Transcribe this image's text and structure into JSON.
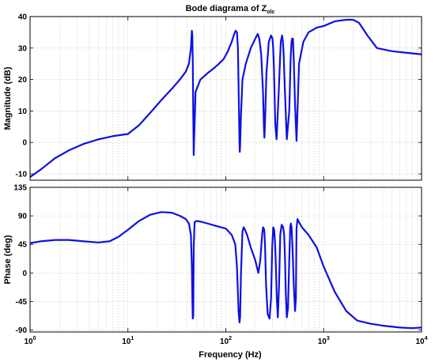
{
  "chart_data": [
    {
      "type": "line",
      "title": "Bode diagrama of Z",
      "title_subscript": "olc",
      "xlabel": "",
      "ylabel": "Magnitude (dB)",
      "xscale": "log",
      "xlim": [
        1,
        10000
      ],
      "ylim": [
        -12,
        40
      ],
      "yticks": [
        -10,
        0,
        10,
        20,
        30,
        40
      ],
      "grid": true,
      "line_color": "#1010e0",
      "series": [
        {
          "x": [
            1,
            1.3,
            1.8,
            2.5,
            3.5,
            5,
            7,
            10,
            13,
            17,
            22,
            28,
            34,
            39,
            42,
            44,
            45,
            45.5,
            46,
            46.5,
            47,
            49,
            55,
            65,
            75,
            85,
            95,
            105,
            115,
            122,
            126,
            130,
            133,
            135,
            137,
            138,
            139,
            140,
            143,
            148,
            160,
            180,
            200,
            212,
            220,
            230,
            240,
            245,
            248,
            252,
            260,
            275,
            290,
            300,
            305,
            310,
            315,
            320,
            330,
            345,
            360,
            365,
            370,
            376,
            383,
            390,
            400,
            420,
            445,
            460,
            470,
            476,
            485,
            495,
            510,
            528,
            560,
            620,
            700,
            850,
            1000,
            1300,
            1700,
            2000,
            2300,
            2800,
            3500,
            5000,
            7000,
            10000
          ],
          "y": [
            -11,
            -8.5,
            -5,
            -2.5,
            -0.5,
            1,
            2,
            2.7,
            5.5,
            9.5,
            13.5,
            17,
            20,
            22.5,
            25,
            30,
            35.5,
            34,
            26,
            9,
            -4,
            16,
            20,
            22,
            23.5,
            25,
            26.5,
            29,
            32,
            34.5,
            35.5,
            35,
            30,
            18,
            6,
            0,
            -3,
            -1,
            9,
            20,
            25,
            30,
            33,
            34.5,
            33,
            28,
            16,
            5,
            1.5,
            7,
            22,
            32,
            34,
            33,
            30,
            24,
            15,
            6,
            1,
            14,
            28,
            32,
            33,
            34,
            32,
            28,
            18,
            1,
            10,
            27,
            32,
            33,
            33,
            26,
            12,
            0.5,
            25,
            32,
            35,
            36.5,
            37,
            38.5,
            39,
            39,
            38,
            34,
            30,
            29,
            28.5,
            28
          ]
        }
      ]
    },
    {
      "type": "line",
      "xlabel": "Frequency (Hz)",
      "ylabel": "Phase (deg)",
      "xscale": "log",
      "xlim": [
        1,
        10000
      ],
      "ylim": [
        -93,
        135
      ],
      "yticks": [
        -90,
        -45,
        0,
        45,
        90,
        135
      ],
      "xticks": [
        "10^0",
        "10^1",
        "10^2",
        "10^3",
        "10^4"
      ],
      "grid": true,
      "line_color": "#1010e0",
      "series": [
        {
          "x": [
            1,
            1.3,
            1.8,
            2.5,
            3.5,
            5,
            6.5,
            8,
            10,
            13,
            17,
            22,
            28,
            34,
            39,
            42,
            44,
            45,
            45.5,
            46,
            46.5,
            47,
            48,
            50,
            55,
            65,
            80,
            100,
            115,
            125,
            130,
            135,
            138,
            140,
            143,
            148,
            152,
            155,
            165,
            180,
            200,
            215,
            225,
            235,
            240,
            245,
            248,
            252,
            258,
            268,
            280,
            290,
            298,
            305,
            312,
            318,
            325,
            332,
            340,
            350,
            360,
            372,
            385,
            395,
            403,
            410,
            420,
            432,
            445,
            455,
            462,
            470,
            480,
            495,
            510,
            520,
            528,
            540,
            560,
            600,
            700,
            850,
            1000,
            1300,
            1700,
            2200,
            3000,
            4000,
            6000,
            8000,
            10000
          ],
          "y": [
            47,
            50,
            52,
            52,
            50,
            48,
            50,
            57,
            68,
            82,
            92,
            96,
            95,
            90,
            85,
            78,
            60,
            10,
            -40,
            -72,
            -68,
            40,
            80,
            82,
            81,
            78,
            74,
            70,
            60,
            45,
            10,
            -60,
            -78,
            -70,
            0,
            65,
            72,
            70,
            60,
            40,
            20,
            0,
            20,
            60,
            72,
            70,
            65,
            40,
            -20,
            -65,
            -72,
            -40,
            40,
            72,
            68,
            50,
            10,
            -40,
            -70,
            -20,
            60,
            76,
            72,
            60,
            20,
            -30,
            -70,
            -55,
            20,
            72,
            78,
            72,
            40,
            -20,
            -60,
            -40,
            70,
            85,
            80,
            72,
            60,
            40,
            10,
            -30,
            -60,
            -75,
            -80,
            -83,
            -86,
            -87,
            -86
          ]
        }
      ]
    }
  ]
}
